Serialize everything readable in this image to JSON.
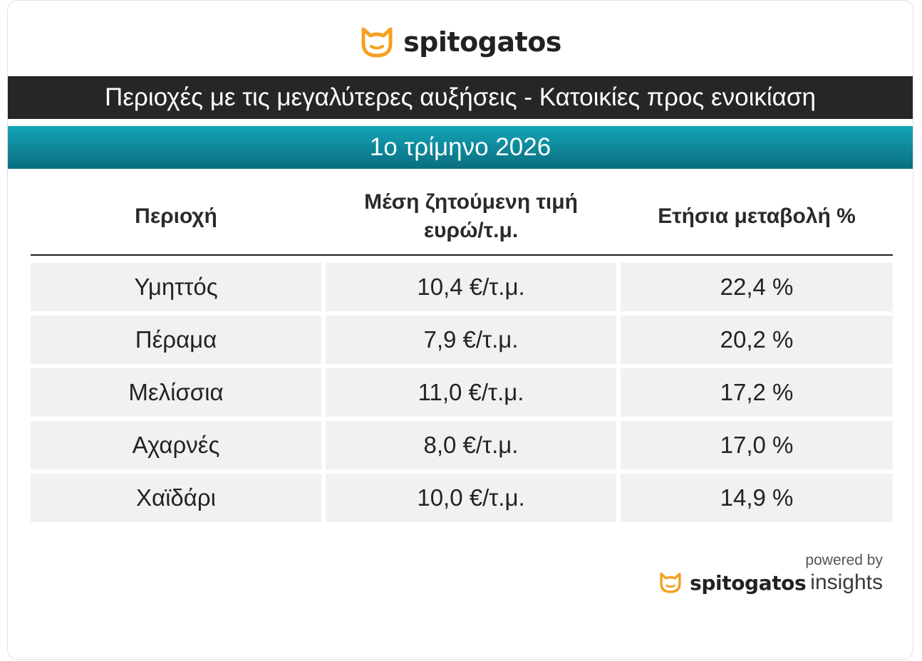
{
  "brand": {
    "name": "spitogatos",
    "logo_icon": "cat-head-icon",
    "accent": "#f5a01f"
  },
  "title": "Περιοχές με τις μεγαλύτερες αυξήσεις - Κατοικίες προς ενοικίαση",
  "period": "1ο τρίμηνο 2026",
  "table": {
    "headers": {
      "area": "Περιοχή",
      "price_line1": "Μέση ζητούμενη τιμή",
      "price_line2": "ευρώ/τ.μ.",
      "change": "Ετήσια μεταβολή %"
    },
    "rows": [
      {
        "area": "Υμηττός",
        "price": "10,4 €/τ.μ.",
        "change": "22,4 %"
      },
      {
        "area": "Πέραμα",
        "price": "7,9 €/τ.μ.",
        "change": "20,2 %"
      },
      {
        "area": "Μελίσσια",
        "price": "11,0 €/τ.μ.",
        "change": "17,2 %"
      },
      {
        "area": "Αχαρνές",
        "price": "8,0 €/τ.μ.",
        "change": "17,0 %"
      },
      {
        "area": "Χαϊδάρι",
        "price": "10,0 €/τ.μ.",
        "change": "14,9 %"
      }
    ]
  },
  "footer": {
    "powered_by": "powered by",
    "brand": "spitogatos",
    "suffix": "insights"
  },
  "colors": {
    "title_bar": "#262626",
    "period_bar": "#0e8698",
    "row_bg": "#f1f1f1"
  }
}
